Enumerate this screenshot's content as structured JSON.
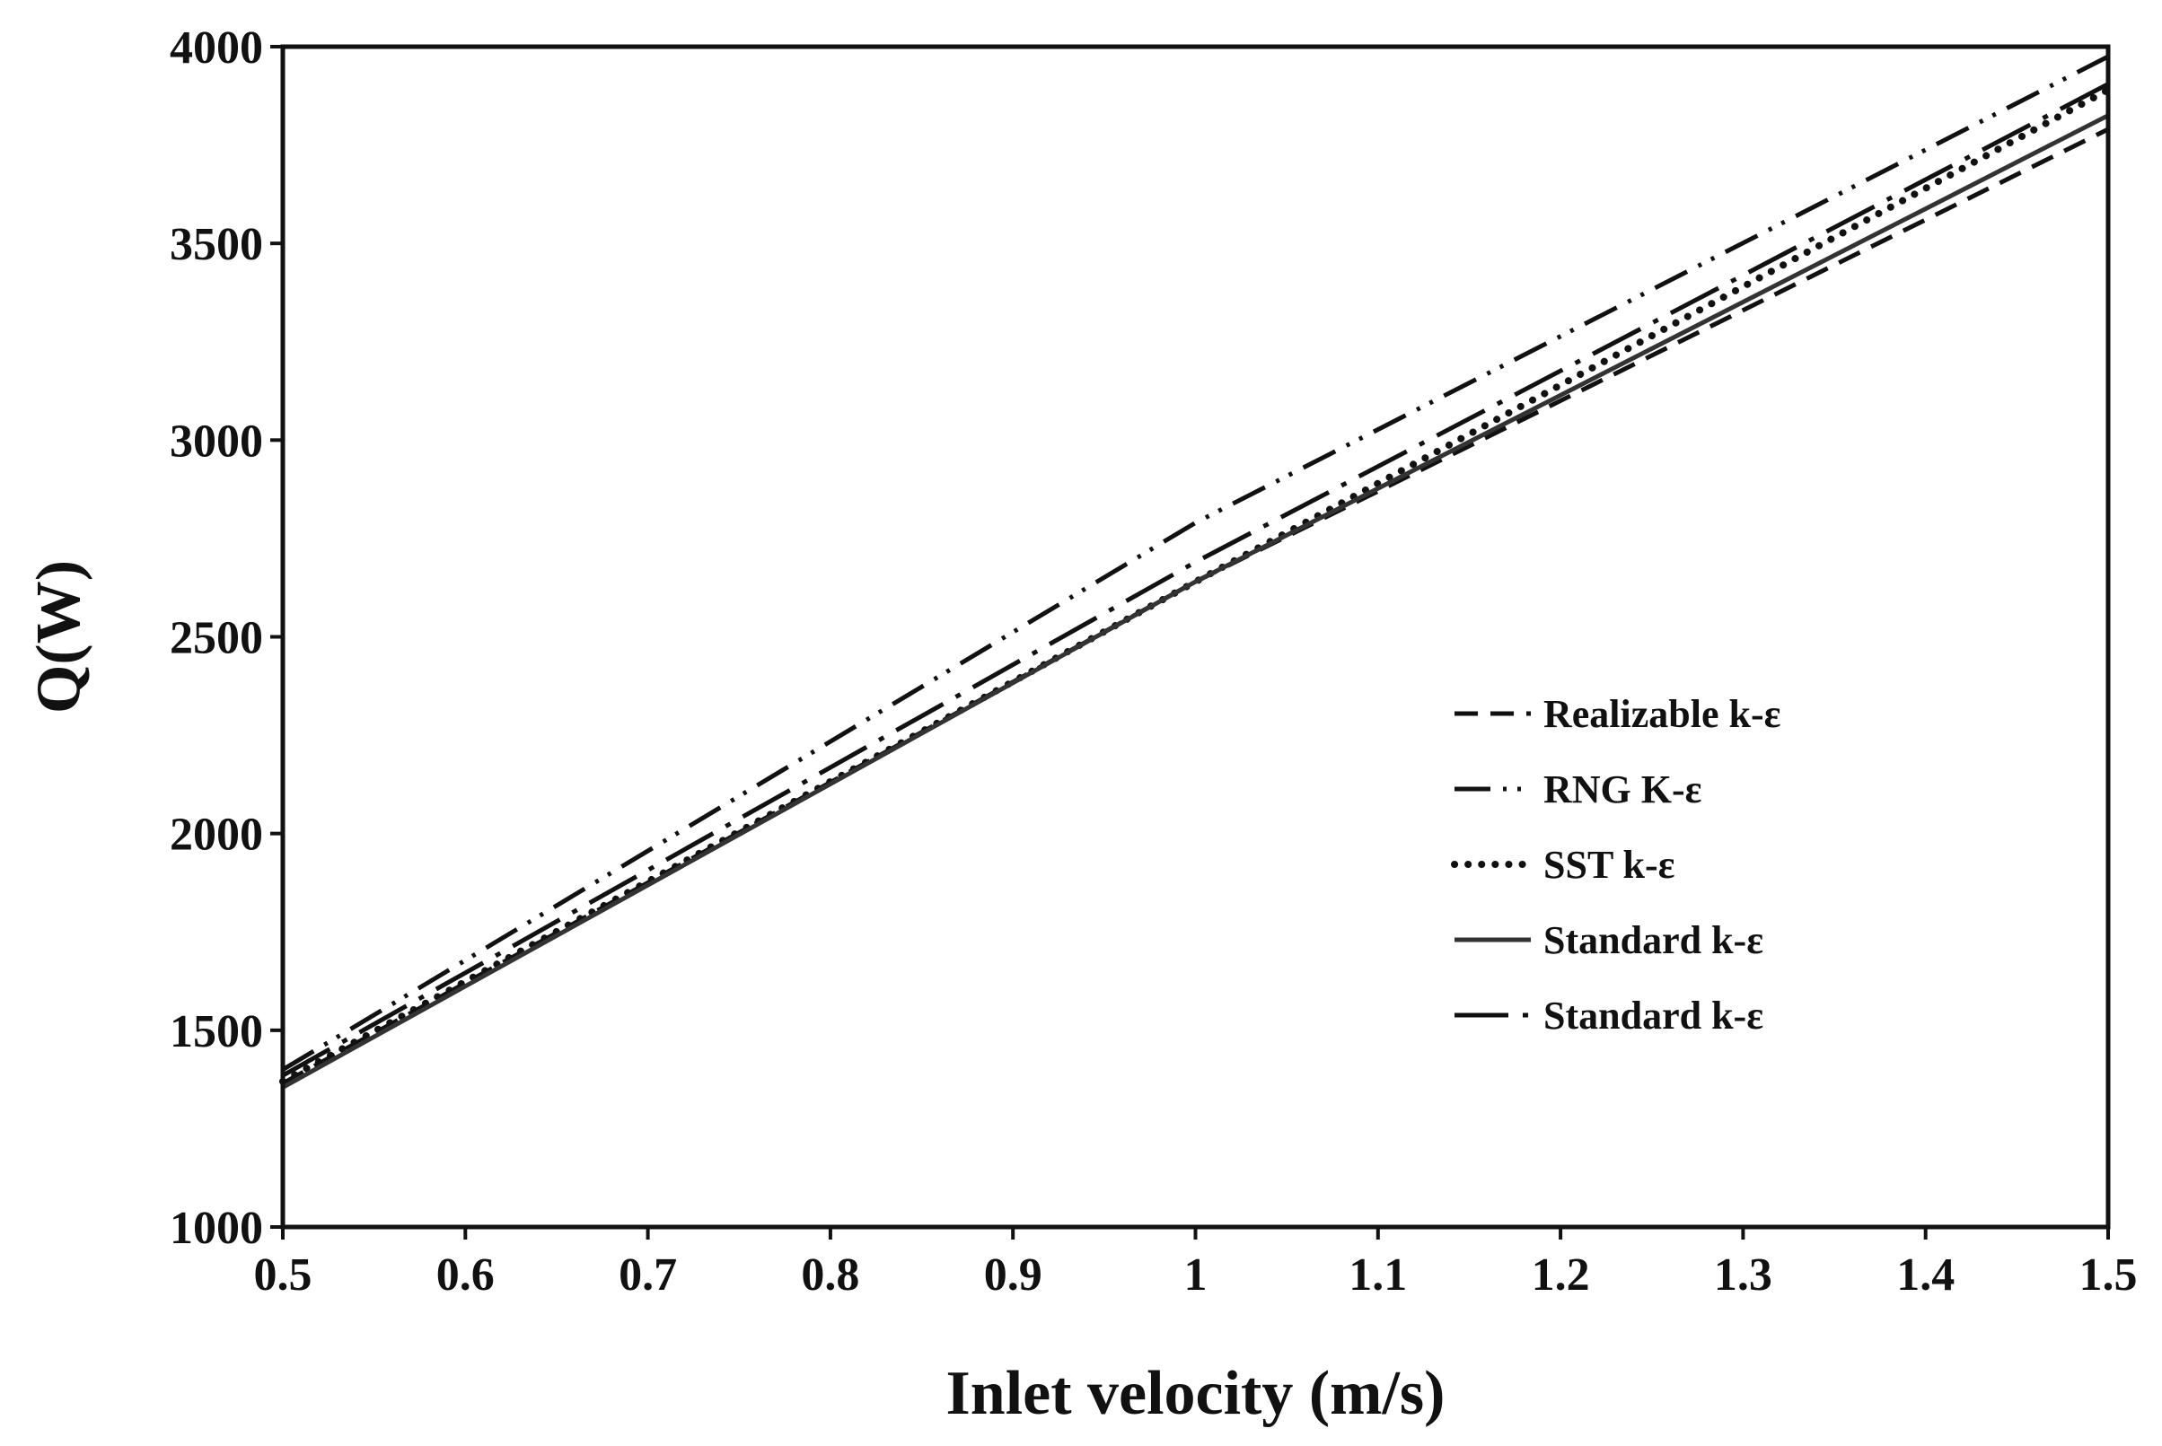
{
  "chart_data": {
    "type": "line",
    "title": "",
    "xlabel": "Inlet velocity (m/s)",
    "ylabel": "Q(W)",
    "xlim": [
      0.5,
      1.5
    ],
    "ylim": [
      1000,
      4000
    ],
    "xticks": [
      "0.5",
      "0.6",
      "0.7",
      "0.8",
      "0.9",
      "1",
      "1.1",
      "1.2",
      "1.3",
      "1.4",
      "1.5"
    ],
    "yticks": [
      "1000",
      "1500",
      "2000",
      "2500",
      "3000",
      "3500",
      "4000"
    ],
    "grid": false,
    "legend_position": "center-right",
    "series": [
      {
        "name": "Realizable k-ε",
        "style": "dashed",
        "color": "#111111",
        "x": [
          0.5,
          1.0,
          1.5
        ],
        "y": [
          1365,
          2640,
          3790
        ]
      },
      {
        "name": "RNG K-ε",
        "style": "dash-dot-dot",
        "color": "#111111",
        "x": [
          0.5,
          1.0,
          1.5
        ],
        "y": [
          1400,
          2790,
          3975
        ]
      },
      {
        "name": "SST k-ε",
        "style": "dotted",
        "color": "#111111",
        "x": [
          0.5,
          1.0,
          1.5
        ],
        "y": [
          1370,
          2640,
          3890
        ]
      },
      {
        "name": "Standard k-ε",
        "style": "solid",
        "color": "#333333",
        "x": [
          0.5,
          1.0,
          1.5
        ],
        "y": [
          1355,
          2640,
          3825
        ]
      },
      {
        "name": "Standard k-ε",
        "style": "long-dash-dot",
        "color": "#111111",
        "x": [
          0.5,
          1.0,
          1.5
        ],
        "y": [
          1385,
          2690,
          3905
        ]
      }
    ]
  }
}
